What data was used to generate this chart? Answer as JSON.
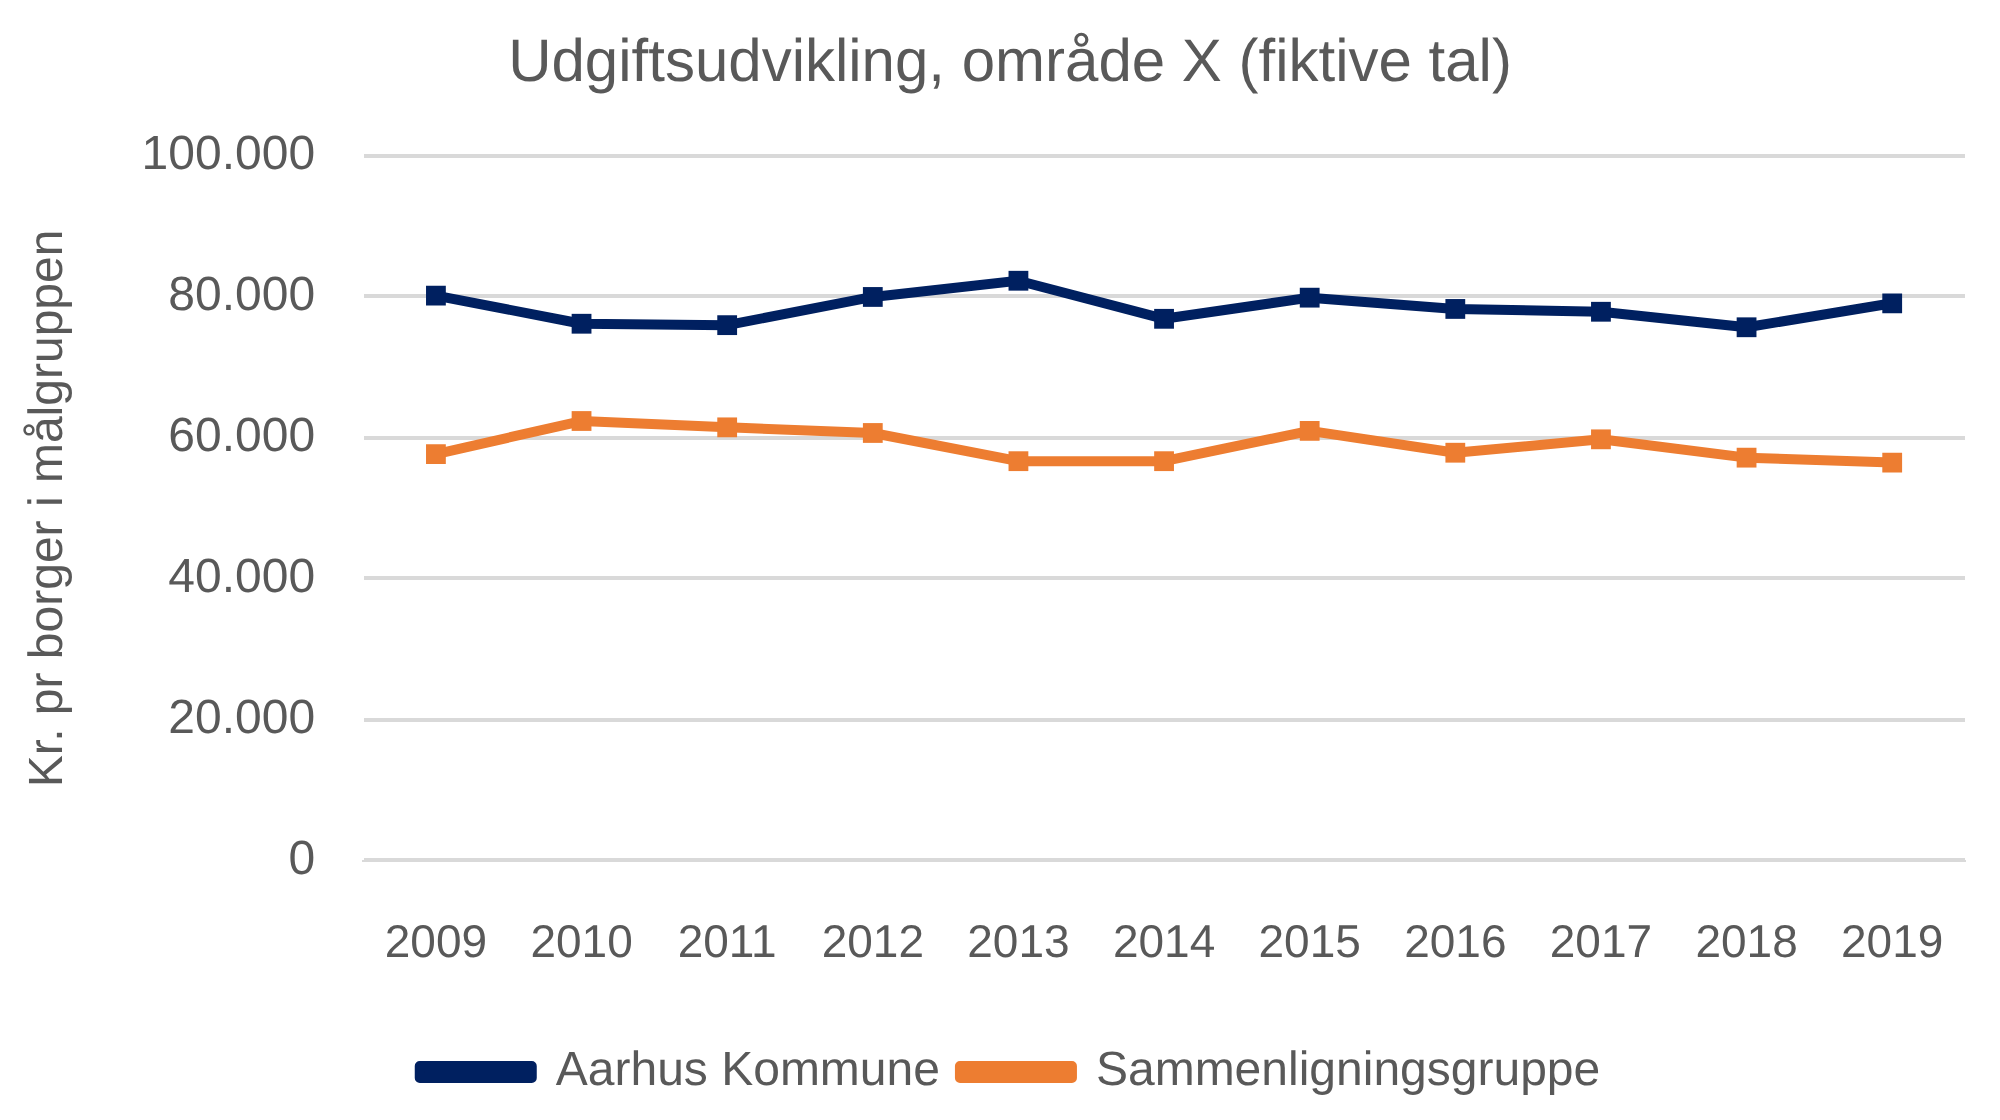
{
  "chart_data": {
    "type": "line",
    "title": "Udgiftsudvikling, område X (fiktive tal)",
    "ylabel": "Kr. pr borger i målgruppen",
    "categories": [
      "2009",
      "2010",
      "2011",
      "2012",
      "2013",
      "2014",
      "2015",
      "2016",
      "2017",
      "2018",
      "2019"
    ],
    "series": [
      {
        "name": "Aarhus Kommune",
        "color": "#002060",
        "values": [
          80200,
          76200,
          76000,
          80000,
          82300,
          76900,
          79900,
          78300,
          77900,
          75700,
          79100
        ]
      },
      {
        "name": "Sammenligningsgruppe",
        "color": "#ed7d31",
        "values": [
          57700,
          62400,
          61500,
          60700,
          56700,
          56700,
          61000,
          57900,
          59800,
          57200,
          56500
        ]
      }
    ],
    "ylim": [
      0,
      100000
    ],
    "yticks": [
      {
        "value": 0,
        "label": "0"
      },
      {
        "value": 20000,
        "label": "20.000"
      },
      {
        "value": 40000,
        "label": "40.000"
      },
      {
        "value": 60000,
        "label": "60.000"
      },
      {
        "value": 80000,
        "label": "80.000"
      },
      {
        "value": 100000,
        "label": "100.000"
      }
    ],
    "grid": "y",
    "legend": "bottom",
    "marker": "square",
    "line_style": "solid"
  }
}
